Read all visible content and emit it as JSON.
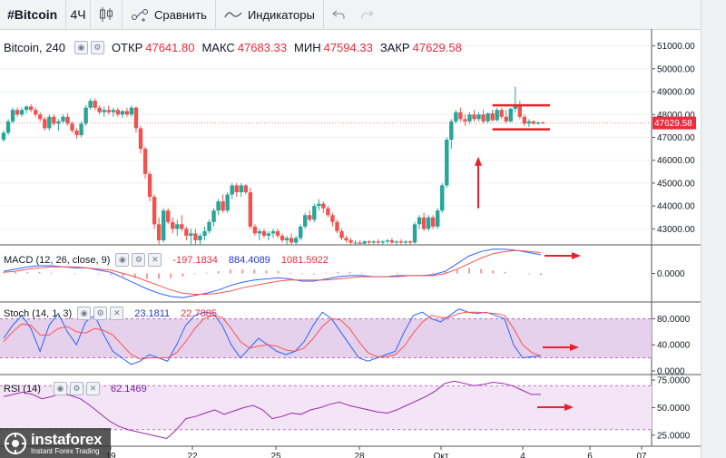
{
  "toolbar": {
    "symbol": "#Bitcoin",
    "interval": "4Ч",
    "compare_label": "Сравнить",
    "indicators_label": "Индикаторы"
  },
  "legend": {
    "title": "Bitcoin, 240",
    "open_label": "ОТКР",
    "open": "47641.80",
    "high_label": "МАКС",
    "high": "47683.33",
    "low_label": "МИН",
    "low": "47594.33",
    "close_label": "ЗАКР",
    "close": "47629.58"
  },
  "macd_legend": {
    "name": "MACD (12, 26, close, 9)",
    "v1": "-197.1834",
    "v2": "884.4089",
    "v3": "1081.5922"
  },
  "stoch_legend": {
    "name": "Stoch (14, 1, 3)",
    "v1": "23.1811",
    "v2": "22.7885"
  },
  "rsi_legend": {
    "name": "RSI (14)",
    "v1": "62.1469"
  },
  "watermark": {
    "name": "instaforex",
    "tagline": "Instant Forex Trading"
  },
  "colors": {
    "up": "#26a69a",
    "down": "#ef5350",
    "annotation": "#e8202c",
    "macd": "#2962ff",
    "signal": "#ff5252",
    "band": "#e1c9e8"
  },
  "chart_data": [
    {
      "type": "candlestick",
      "title": "Bitcoin, 240",
      "y_ticks": [
        "43000.00",
        "44000.00",
        "45000.00",
        "46000.00",
        "47000.00",
        "48000.00",
        "49000.00",
        "50000.00",
        "51000.00"
      ],
      "ylim": [
        42300,
        51500
      ],
      "last_price": "47629.58",
      "x_ticks": [
        "19",
        "22",
        "25",
        "28",
        "Окт",
        "4",
        "6",
        "07"
      ],
      "candles": [
        [
          46900,
          47300,
          46800,
          47200
        ],
        [
          47200,
          47800,
          47100,
          47700
        ],
        [
          47700,
          48300,
          47600,
          48200
        ],
        [
          48200,
          48300,
          47900,
          48000
        ],
        [
          48000,
          48300,
          47900,
          48200
        ],
        [
          48200,
          48400,
          48050,
          48350
        ],
        [
          48350,
          48450,
          48100,
          48200
        ],
        [
          48200,
          48300,
          47900,
          48000
        ],
        [
          48000,
          48100,
          47700,
          47800
        ],
        [
          47800,
          47900,
          47300,
          47400
        ],
        [
          47400,
          48000,
          47300,
          47900
        ],
        [
          47900,
          48000,
          47500,
          47600
        ],
        [
          47600,
          47800,
          47300,
          47700
        ],
        [
          47700,
          48000,
          47600,
          47900
        ],
        [
          47900,
          48050,
          47500,
          47600
        ],
        [
          47600,
          47700,
          47200,
          47300
        ],
        [
          47300,
          47400,
          46950,
          47100
        ],
        [
          47100,
          47700,
          47000,
          47600
        ],
        [
          47600,
          48400,
          47500,
          48300
        ],
        [
          48300,
          48700,
          48200,
          48600
        ],
        [
          48600,
          48700,
          48200,
          48300
        ],
        [
          48300,
          48400,
          48000,
          48100
        ],
        [
          48100,
          48350,
          47900,
          48200
        ],
        [
          48200,
          48400,
          48000,
          48100
        ],
        [
          48100,
          48300,
          47900,
          48200
        ],
        [
          48200,
          48300,
          47900,
          48000
        ],
        [
          48000,
          48200,
          47850,
          48150
        ],
        [
          48150,
          48300,
          47900,
          48000
        ],
        [
          48000,
          48400,
          47900,
          48300
        ],
        [
          48300,
          48350,
          47200,
          47400
        ],
        [
          47400,
          47500,
          46300,
          46500
        ],
        [
          46500,
          46600,
          45200,
          45400
        ],
        [
          45400,
          45500,
          44200,
          44400
        ],
        [
          44400,
          44500,
          43000,
          43200
        ],
        [
          43200,
          43500,
          42300,
          42500
        ],
        [
          42500,
          43900,
          42400,
          43800
        ],
        [
          43800,
          43900,
          43200,
          43300
        ],
        [
          43300,
          43500,
          42800,
          43000
        ],
        [
          43000,
          43400,
          42700,
          43200
        ],
        [
          43200,
          43600,
          42900,
          43000
        ],
        [
          43000,
          43100,
          42500,
          42700
        ],
        [
          42700,
          43000,
          42300,
          42800
        ],
        [
          42800,
          43000,
          42300,
          42500
        ],
        [
          42500,
          42800,
          42300,
          42700
        ],
        [
          42700,
          43100,
          42500,
          42900
        ],
        [
          42900,
          43400,
          42800,
          43300
        ],
        [
          43300,
          43900,
          43100,
          43800
        ],
        [
          43800,
          44300,
          43600,
          44200
        ],
        [
          44200,
          44500,
          43700,
          43800
        ],
        [
          43800,
          44600,
          43700,
          44500
        ],
        [
          44500,
          45000,
          44300,
          44900
        ],
        [
          44900,
          45000,
          44400,
          44600
        ],
        [
          44600,
          45000,
          44400,
          44900
        ],
        [
          44900,
          44950,
          44500,
          44600
        ],
        [
          44600,
          44800,
          43000,
          43100
        ],
        [
          43100,
          43200,
          42700,
          42800
        ],
        [
          42800,
          43000,
          42500,
          42900
        ],
        [
          42900,
          43000,
          42600,
          42700
        ],
        [
          42700,
          42900,
          42500,
          42800
        ],
        [
          42800,
          43000,
          42600,
          42900
        ],
        [
          42900,
          43000,
          42600,
          42700
        ],
        [
          42700,
          42800,
          42400,
          42500
        ],
        [
          42500,
          42700,
          42300,
          42600
        ],
        [
          42600,
          42800,
          42300,
          42400
        ],
        [
          42400,
          42700,
          42300,
          42600
        ],
        [
          42600,
          43200,
          42500,
          43100
        ],
        [
          43100,
          43700,
          43000,
          43600
        ],
        [
          43600,
          43800,
          43300,
          43400
        ],
        [
          43400,
          44100,
          43300,
          44000
        ],
        [
          44000,
          44300,
          43800,
          44100
        ],
        [
          44100,
          44200,
          43700,
          43900
        ],
        [
          43900,
          44000,
          43500,
          43600
        ],
        [
          43600,
          43700,
          43100,
          43300
        ],
        [
          43300,
          43400,
          42800,
          42900
        ],
        [
          42900,
          43000,
          42500,
          42600
        ],
        [
          42600,
          42700,
          42400,
          42500
        ],
        [
          42500,
          42600,
          42300,
          42400
        ],
        [
          42400,
          42500,
          42300,
          42400
        ],
        [
          42400,
          42500,
          42300,
          42350
        ],
        [
          42350,
          42500,
          42300,
          42450
        ],
        [
          42450,
          42500,
          42300,
          42400
        ],
        [
          42400,
          42500,
          42300,
          42450
        ],
        [
          42450,
          42550,
          42300,
          42400
        ],
        [
          42400,
          42500,
          42300,
          42450
        ],
        [
          42450,
          42550,
          42350,
          42500
        ],
        [
          42500,
          42600,
          42350,
          42400
        ],
        [
          42400,
          42500,
          42300,
          42450
        ],
        [
          42450,
          42550,
          42300,
          42400
        ],
        [
          42400,
          42500,
          42300,
          42450
        ],
        [
          42450,
          42500,
          42300,
          42400
        ],
        [
          42400,
          43300,
          42350,
          43200
        ],
        [
          43200,
          43600,
          43000,
          43500
        ],
        [
          43500,
          43700,
          42900,
          43000
        ],
        [
          43000,
          43600,
          42900,
          43500
        ],
        [
          43500,
          43600,
          43000,
          43100
        ],
        [
          43100,
          43900,
          43000,
          43800
        ],
        [
          43800,
          45000,
          43700,
          44900
        ],
        [
          44900,
          47000,
          44800,
          46900
        ],
        [
          46900,
          47800,
          46500,
          47700
        ],
        [
          47700,
          48200,
          47600,
          48100
        ],
        [
          48100,
          48300,
          47700,
          47800
        ],
        [
          47800,
          48000,
          47500,
          47700
        ],
        [
          47700,
          48100,
          47600,
          48000
        ],
        [
          48000,
          48200,
          47700,
          47800
        ],
        [
          47800,
          48100,
          47700,
          48000
        ],
        [
          48000,
          48200,
          47600,
          47700
        ],
        [
          47700,
          48100,
          47600,
          48050
        ],
        [
          48050,
          48200,
          47700,
          47750
        ],
        [
          47750,
          48300,
          47700,
          48200
        ],
        [
          48200,
          48300,
          47800,
          47900
        ],
        [
          47900,
          48200,
          47600,
          47700
        ],
        [
          47700,
          48300,
          47650,
          48250
        ],
        [
          48250,
          49200,
          48100,
          48400
        ],
        [
          48400,
          48600,
          47800,
          47900
        ],
        [
          47900,
          48000,
          47500,
          47600
        ],
        [
          47600,
          47800,
          47450,
          47700
        ],
        [
          47700,
          47750,
          47550,
          47600
        ],
        [
          47600,
          47700,
          47550,
          47650
        ],
        [
          47650,
          47700,
          47590,
          47630
        ]
      ]
    },
    {
      "type": "line",
      "title": "MACD (12, 26, close, 9)",
      "y_ticks": [
        "0.0000"
      ],
      "series": [
        {
          "name": "MACD",
          "values": [
            200,
            400,
            600,
            700,
            700,
            600,
            500,
            500,
            300,
            100,
            -400,
            -900,
            -1400,
            -1800,
            -2100,
            -2200,
            -2000,
            -1800,
            -1500,
            -1100,
            -800,
            -600,
            -500,
            -400,
            -500,
            -700,
            -700,
            -500,
            -300,
            -200,
            -200,
            -300,
            -300,
            -200,
            -200,
            -200,
            -100,
            200,
            900,
            1600,
            2000,
            2200,
            2200,
            2100,
            1900,
            1700
          ]
        },
        {
          "name": "Signal",
          "values": [
            100,
            200,
            400,
            500,
            600,
            600,
            600,
            500,
            400,
            300,
            0,
            -300,
            -700,
            -1100,
            -1500,
            -1800,
            -1900,
            -1900,
            -1800,
            -1600,
            -1300,
            -1100,
            -900,
            -700,
            -600,
            -600,
            -600,
            -600,
            -500,
            -400,
            -300,
            -300,
            -300,
            -300,
            -200,
            -200,
            -200,
            0,
            400,
            900,
            1400,
            1800,
            2000,
            2100,
            2000,
            1900
          ]
        }
      ]
    },
    {
      "type": "line",
      "title": "Stoch (14, 1, 3)",
      "y_ticks": [
        "0.0000",
        "40.0000",
        "80.0000"
      ],
      "ylim": [
        0,
        100
      ],
      "bands": [
        20,
        80
      ],
      "series": [
        {
          "name": "%K",
          "values": [
            50,
            70,
            85,
            65,
            30,
            70,
            88,
            60,
            40,
            75,
            85,
            55,
            30,
            20,
            10,
            15,
            25,
            20,
            15,
            40,
            70,
            85,
            90,
            88,
            70,
            40,
            20,
            35,
            50,
            40,
            30,
            25,
            30,
            45,
            70,
            90,
            80,
            60,
            40,
            20,
            15,
            20,
            25,
            30,
            60,
            85,
            90,
            80,
            75,
            85,
            95,
            90,
            88,
            90,
            85,
            80,
            40,
            20,
            22,
            23
          ]
        },
        {
          "name": "%D",
          "values": [
            45,
            60,
            72,
            70,
            55,
            55,
            65,
            68,
            60,
            58,
            65,
            62,
            55,
            40,
            25,
            18,
            20,
            20,
            20,
            28,
            45,
            65,
            80,
            85,
            82,
            65,
            45,
            35,
            38,
            40,
            38,
            32,
            30,
            35,
            50,
            68,
            80,
            78,
            65,
            45,
            28,
            22,
            22,
            25,
            38,
            58,
            75,
            85,
            82,
            82,
            88,
            90,
            90,
            89,
            88,
            85,
            65,
            40,
            28,
            23
          ]
        }
      ]
    },
    {
      "type": "line",
      "title": "RSI (14)",
      "y_ticks": [
        "25.0000",
        "50.0000",
        "75.0000"
      ],
      "ylim": [
        15,
        80
      ],
      "bands": [
        30,
        70
      ],
      "series": [
        {
          "name": "RSI",
          "values": [
            60,
            62,
            64,
            62,
            58,
            60,
            63,
            61,
            58,
            52,
            45,
            38,
            33,
            30,
            28,
            26,
            24,
            22,
            30,
            40,
            42,
            45,
            48,
            44,
            47,
            50,
            52,
            48,
            40,
            42,
            45,
            44,
            48,
            50,
            53,
            55,
            52,
            50,
            48,
            46,
            45,
            48,
            52,
            56,
            60,
            65,
            72,
            74,
            72,
            70,
            71,
            73,
            72,
            70,
            66,
            62,
            62
          ]
        }
      ]
    }
  ]
}
